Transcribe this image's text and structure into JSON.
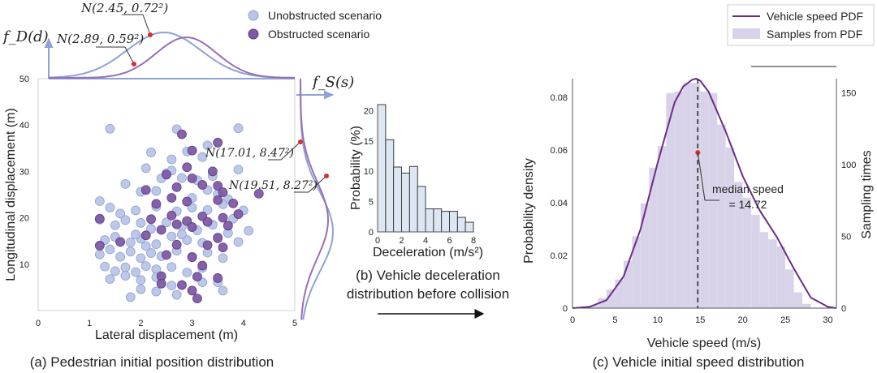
{
  "panel_a": {
    "caption": "(a) Pedestrian initial position distribution",
    "xlabel": "Lateral displacement (m)",
    "ylabel": "Longitudinal displacement (m)",
    "legend_unobstructed": "Unobstructed scenario",
    "legend_obstructed": "Obstructed scenario",
    "top_axis_label": "f_D(d)",
    "right_axis_label": "f_S(s)",
    "ann_top_1": "N(2.45, 0.72²)",
    "ann_top_2": "N(2.89, 0.59²)",
    "ann_right_1": "N(17.01, 8.47²)",
    "ann_right_2": "N(19.51, 8.27²)"
  },
  "panel_b": {
    "caption_line1": "(b) Vehicle deceleration",
    "caption_line2": "distribution before collision",
    "xlabel": "Deceleration (m/s²)",
    "ylabel": "Probability (%)"
  },
  "panel_c": {
    "caption": "(c) Vehicle initial speed distribution",
    "xlabel": "Vehicle speed (m/s)",
    "ylabel_left": "Probability density",
    "ylabel_right": "Sampling times",
    "legend_pdf": "Vehicle speed PDF",
    "legend_samples": "Samples from PDF",
    "median_label_1": "median speed",
    "median_label_2": "= 14.72"
  },
  "colors": {
    "unobstructed": "#b9c4e6",
    "obstructed": "#7f5aa6",
    "blue_curve": "#8ea2d4",
    "purple_curve": "#9a6fb4",
    "pdf_line": "#6b2c86",
    "samples": "#d9d3ea",
    "hist_fill": "#dce7f3",
    "marker": "#d42f2f"
  },
  "chart_data": [
    {
      "type": "scatter",
      "title": "(a) Pedestrian initial position distribution",
      "xlabel": "Lateral displacement (m)",
      "ylabel": "Longitudinal displacement (m)",
      "xlim": [
        0,
        5
      ],
      "ylim": [
        0,
        50
      ],
      "xticks": [
        0,
        1,
        2,
        3,
        4,
        5
      ],
      "yticks": [
        10,
        20,
        30,
        40,
        50
      ],
      "marginal_x": [
        {
          "name": "Unobstructed scenario",
          "mean": 2.45,
          "sd": 0.72
        },
        {
          "name": "Obstructed scenario",
          "mean": 2.89,
          "sd": 0.59
        }
      ],
      "marginal_y": [
        {
          "name": "Unobstructed scenario",
          "mean": 17.01,
          "sd": 8.47
        },
        {
          "name": "Obstructed scenario",
          "mean": 19.51,
          "sd": 8.27
        }
      ],
      "series": [
        {
          "name": "Unobstructed scenario",
          "points": [
            [
              1.4,
              39.2
            ],
            [
              2.7,
              39.1
            ],
            [
              3.9,
              39.3
            ],
            [
              3.3,
              35.6
            ],
            [
              2.2,
              34.1
            ],
            [
              2.9,
              34.3
            ],
            [
              2.6,
              32.6
            ],
            [
              3.2,
              33.1
            ],
            [
              2.1,
              30.7
            ],
            [
              2.4,
              28.5
            ],
            [
              2.5,
              29.6
            ],
            [
              2.6,
              30.2
            ],
            [
              2.8,
              28.6
            ],
            [
              3.4,
              29.0
            ],
            [
              3.9,
              30.4
            ],
            [
              3.1,
              28.1
            ],
            [
              1.7,
              27.3
            ],
            [
              2.0,
              25.6
            ],
            [
              2.3,
              25.8
            ],
            [
              3.0,
              24.3
            ],
            [
              3.3,
              26.0
            ],
            [
              3.5,
              25.1
            ],
            [
              3.7,
              24.0
            ],
            [
              1.2,
              23.6
            ],
            [
              1.4,
              22.2
            ],
            [
              1.6,
              20.9
            ],
            [
              1.9,
              21.6
            ],
            [
              2.3,
              22.4
            ],
            [
              2.7,
              21.4
            ],
            [
              3.0,
              22.2
            ],
            [
              3.3,
              21.7
            ],
            [
              3.6,
              22.9
            ],
            [
              4.0,
              21.6
            ],
            [
              1.2,
              19.6
            ],
            [
              1.5,
              18.4
            ],
            [
              1.7,
              19.5
            ],
            [
              2.0,
              18.9
            ],
            [
              2.2,
              17.6
            ],
            [
              2.5,
              19.0
            ],
            [
              2.8,
              18.1
            ],
            [
              3.1,
              17.3
            ],
            [
              3.4,
              18.5
            ],
            [
              3.8,
              19.8
            ],
            [
              4.1,
              17.2
            ],
            [
              1.3,
              15.2
            ],
            [
              1.5,
              15.9
            ],
            [
              1.8,
              14.7
            ],
            [
              2.0,
              15.5
            ],
            [
              2.3,
              14.3
            ],
            [
              2.6,
              16.0
            ],
            [
              2.9,
              15.2
            ],
            [
              3.2,
              14.6
            ],
            [
              3.5,
              15.8
            ],
            [
              3.9,
              14.8
            ],
            [
              1.2,
              12.1
            ],
            [
              1.4,
              13.2
            ],
            [
              1.6,
              11.6
            ],
            [
              1.8,
              12.7
            ],
            [
              2.0,
              11.3
            ],
            [
              2.2,
              12.4
            ],
            [
              2.4,
              11.7
            ],
            [
              2.7,
              12.9
            ],
            [
              3.0,
              11.6
            ],
            [
              3.3,
              12.5
            ],
            [
              3.6,
              11.3
            ],
            [
              1.3,
              9.5
            ],
            [
              1.5,
              8.5
            ],
            [
              1.7,
              9.3
            ],
            [
              1.9,
              8.3
            ],
            [
              2.1,
              9.6
            ],
            [
              2.3,
              8.9
            ],
            [
              2.6,
              9.4
            ],
            [
              2.9,
              8.2
            ],
            [
              3.2,
              9.2
            ],
            [
              1.4,
              6.8
            ],
            [
              1.7,
              7.5
            ],
            [
              2.0,
              6.6
            ],
            [
              2.3,
              7.2
            ],
            [
              2.6,
              5.4
            ],
            [
              2.0,
              4.6
            ],
            [
              2.3,
              4.1
            ],
            [
              1.8,
              2.9
            ],
            [
              2.7,
              3.4
            ],
            [
              3.2,
              6.1
            ],
            [
              3.5,
              6.1
            ],
            [
              3.6,
              4.3
            ],
            [
              1.9,
              16.4
            ],
            [
              2.8,
              16.4
            ],
            [
              3.7,
              16.7
            ],
            [
              2.1,
              13.9
            ]
          ]
        },
        {
          "name": "Obstructed scenario",
          "points": [
            [
              3.5,
              36.2
            ],
            [
              3.0,
              34.5
            ],
            [
              2.9,
              30.9
            ],
            [
              3.4,
              30.0
            ],
            [
              3.5,
              26.9
            ],
            [
              2.5,
              29.3
            ],
            [
              3.0,
              28.5
            ],
            [
              2.7,
              26.6
            ],
            [
              3.2,
              27.1
            ],
            [
              4.3,
              25.2
            ],
            [
              3.6,
              25.5
            ],
            [
              2.3,
              23.0
            ],
            [
              2.6,
              24.3
            ],
            [
              2.9,
              23.5
            ],
            [
              3.5,
              23.8
            ],
            [
              3.8,
              23.1
            ],
            [
              1.2,
              19.8
            ],
            [
              2.2,
              19.7
            ],
            [
              2.6,
              20.5
            ],
            [
              2.9,
              19.3
            ],
            [
              3.2,
              20.3
            ],
            [
              3.6,
              20.0
            ],
            [
              3.9,
              20.8
            ],
            [
              3.0,
              18.0
            ],
            [
              3.3,
              19.1
            ],
            [
              2.4,
              17.4
            ],
            [
              2.7,
              18.6
            ],
            [
              3.7,
              18.3
            ],
            [
              3.5,
              15.6
            ],
            [
              1.2,
              14.0
            ],
            [
              1.6,
              14.8
            ],
            [
              2.1,
              16.2
            ],
            [
              2.7,
              14.2
            ],
            [
              3.3,
              14.1
            ],
            [
              3.6,
              13.6
            ],
            [
              2.5,
              12.0
            ],
            [
              3.0,
              11.5
            ],
            [
              3.2,
              9.7
            ],
            [
              2.4,
              7.4
            ],
            [
              3.1,
              7.3
            ],
            [
              3.5,
              7.0
            ],
            [
              2.8,
              5.5
            ],
            [
              3.0,
              4.3
            ],
            [
              2.4,
              5.8
            ],
            [
              3.1,
              2.6
            ],
            [
              2.1,
              26.0
            ],
            [
              2.8,
              38.0
            ]
          ]
        }
      ]
    },
    {
      "type": "bar",
      "title": "(b) Vehicle deceleration distribution before collision",
      "xlabel": "Deceleration (m/s²)",
      "ylabel": "Probability (%)",
      "bin_width": 0.67,
      "bin_starts": [
        0,
        0.67,
        1.33,
        2.0,
        2.67,
        3.33,
        4.0,
        4.67,
        5.33,
        6.0,
        6.67,
        7.33
      ],
      "values": [
        21.0,
        15.2,
        10.7,
        9.7,
        10.8,
        7.5,
        3.8,
        3.8,
        3.4,
        3.4,
        2.4,
        1.6
      ],
      "xlim": [
        0,
        8
      ],
      "ylim": [
        0,
        21
      ],
      "xticks": [
        0,
        2,
        4,
        6,
        8
      ],
      "yticks": [
        0,
        5,
        10,
        15,
        20
      ]
    },
    {
      "type": "area",
      "title": "(c) Vehicle initial speed distribution",
      "xlabel": "Vehicle speed (m/s)",
      "ylabel": "Probability density",
      "ylabel_right": "Sampling times",
      "xlim": [
        0,
        31
      ],
      "ylim": [
        0,
        0.087
      ],
      "ylim_right": [
        0,
        160
      ],
      "xticks": [
        0,
        5,
        10,
        15,
        20,
        25,
        30
      ],
      "yticks": [
        0,
        0.02,
        0.04,
        0.06,
        0.08
      ],
      "yticks_right": [
        0,
        50,
        100,
        150
      ],
      "median": 14.72,
      "median_density": 0.059,
      "series": [
        {
          "name": "Vehicle speed PDF",
          "x": [
            0,
            2,
            4,
            6,
            8,
            10,
            12,
            13,
            14,
            14.5,
            15,
            16,
            18,
            20,
            22,
            24,
            26,
            28,
            30,
            31
          ],
          "y": [
            0,
            0.0005,
            0.003,
            0.012,
            0.03,
            0.055,
            0.078,
            0.084,
            0.0865,
            0.087,
            0.0862,
            0.082,
            0.067,
            0.05,
            0.037,
            0.027,
            0.015,
            0.004,
            0.0005,
            0
          ]
        },
        {
          "name": "Samples from PDF",
          "bin_width": 1,
          "bin_starts": [
            2,
            3,
            4,
            5,
            6,
            7,
            8,
            9,
            10,
            11,
            12,
            13,
            14,
            15,
            16,
            17,
            18,
            19,
            20,
            21,
            22,
            23,
            24,
            25,
            26,
            27
          ],
          "values": [
            2,
            7,
            13,
            20,
            33,
            50,
            73,
            98,
            113,
            150,
            151,
            157,
            157,
            151,
            150,
            128,
            112,
            88,
            77,
            65,
            53,
            48,
            43,
            27,
            11,
            3
          ]
        }
      ]
    }
  ]
}
